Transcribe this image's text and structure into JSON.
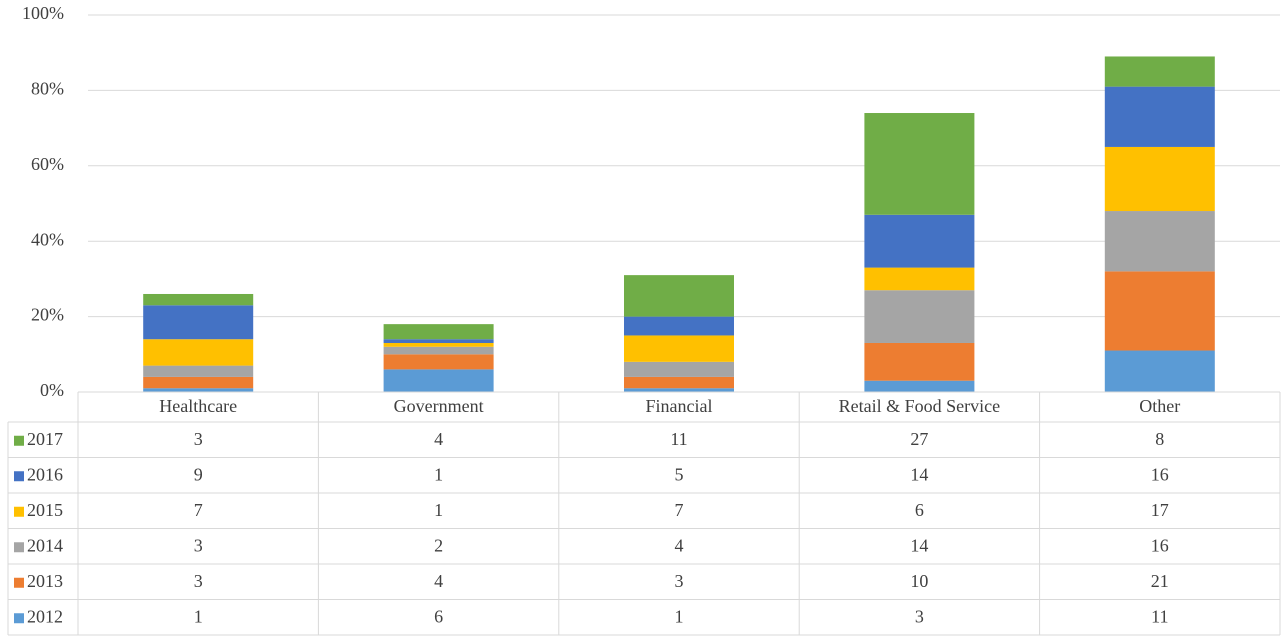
{
  "chart_data": {
    "type": "stacked_bar",
    "categories": [
      "Healthcare",
      "Government",
      "Financial",
      "Retail & Food Service",
      "Other"
    ],
    "series": [
      {
        "name": "2012",
        "color": "#5b9bd5",
        "values": [
          1,
          6,
          1,
          3,
          11
        ]
      },
      {
        "name": "2013",
        "color": "#ed7d31",
        "values": [
          3,
          4,
          3,
          10,
          21
        ]
      },
      {
        "name": "2014",
        "color": "#a5a5a5",
        "values": [
          3,
          2,
          4,
          14,
          16
        ]
      },
      {
        "name": "2015",
        "color": "#ffc000",
        "values": [
          7,
          1,
          7,
          6,
          17
        ]
      },
      {
        "name": "2016",
        "color": "#4472c4",
        "values": [
          9,
          1,
          5,
          14,
          16
        ]
      },
      {
        "name": "2017",
        "color": "#70ad47",
        "values": [
          3,
          4,
          11,
          27,
          8
        ]
      }
    ],
    "ylim": [
      0,
      100
    ],
    "yticks": [
      {
        "value": 0,
        "label": "0%"
      },
      {
        "value": 20,
        "label": "20%"
      },
      {
        "value": 40,
        "label": "40%"
      },
      {
        "value": 60,
        "label": "60%"
      },
      {
        "value": 80,
        "label": "80%"
      },
      {
        "value": 100,
        "label": "100%"
      }
    ],
    "grid": true,
    "data_table": true
  }
}
